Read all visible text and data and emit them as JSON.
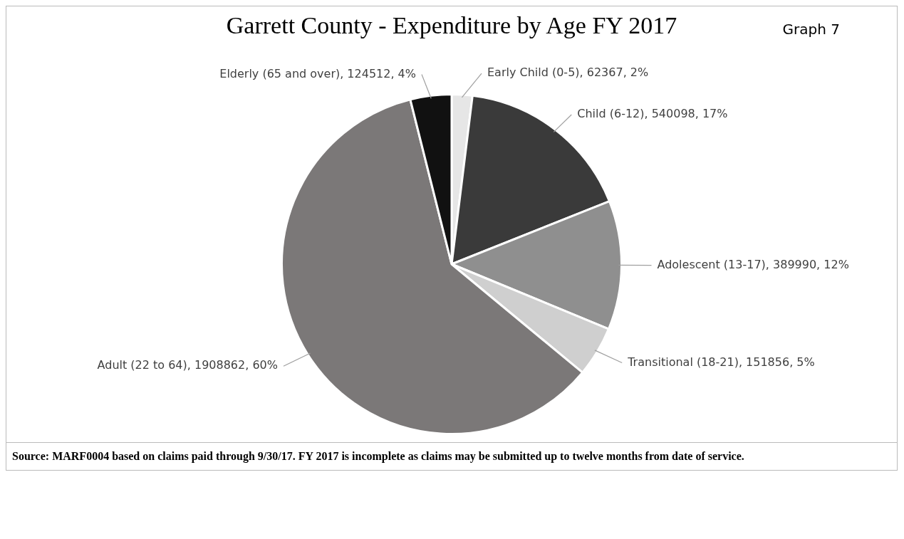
{
  "chart_data": {
    "type": "pie",
    "title": "Garrett County - Expenditure by Age FY 2017",
    "categories": [
      "Early Child (0-5)",
      "Child (6-12)",
      "Adolescent (13-17)",
      "Transitional (18-21)",
      "Adult (22 to 64)",
      "Elderly (65 and over)"
    ],
    "values": [
      62367,
      540098,
      389990,
      151856,
      1908862,
      124512
    ],
    "value_labels": [
      "62367, 2%",
      "540098, 17%",
      "389990, 12%",
      "151856, 5%",
      "1908862, 60%",
      "124512, 4%"
    ],
    "colors": [
      "#e6e6e6",
      "#3a3a3a",
      "#8f8f8f",
      "#cfcfcf",
      "#7b7878",
      "#111111"
    ],
    "annotations": [
      "Graph 7",
      "Source:  MARF0004 based on claims paid through 9/30/17.  FY 2017 is incomplete as claims may be submitted up to twelve months from date of service."
    ],
    "legend": false
  }
}
